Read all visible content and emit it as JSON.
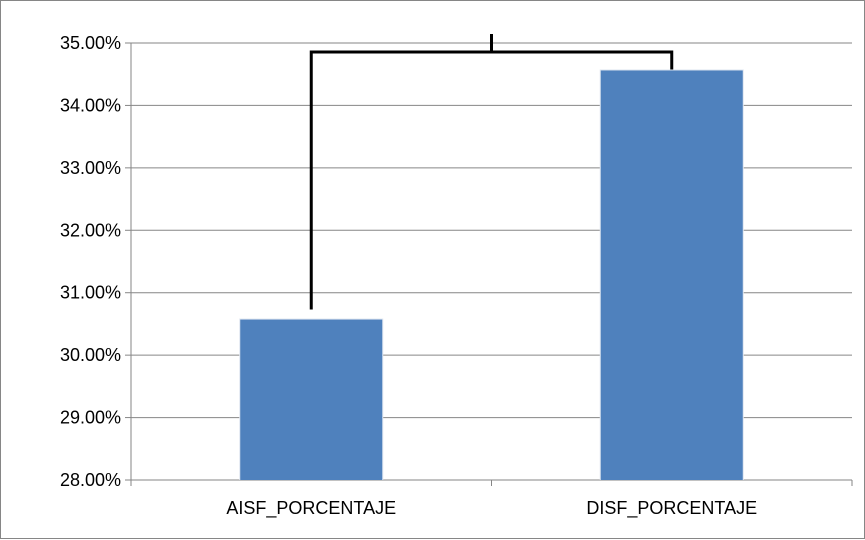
{
  "chart_data": {
    "type": "bar",
    "categories": [
      "AISF_PORCENTAJE",
      "DISF_PORCENTAJE"
    ],
    "values": [
      30.57,
      34.56
    ],
    "ylim": [
      28.0,
      35.0
    ],
    "yticks": [
      28.0,
      29.0,
      30.0,
      31.0,
      32.0,
      33.0,
      34.0,
      35.0
    ],
    "ytick_labels": [
      "28.00%",
      "29.00%",
      "30.00%",
      "31.00%",
      "32.00%",
      "33.00%",
      "34.00%",
      "35.00%"
    ],
    "grid": true,
    "legend": "none",
    "bar_color": "#4F81BD",
    "annotation": "significance bracket connecting both bars"
  }
}
